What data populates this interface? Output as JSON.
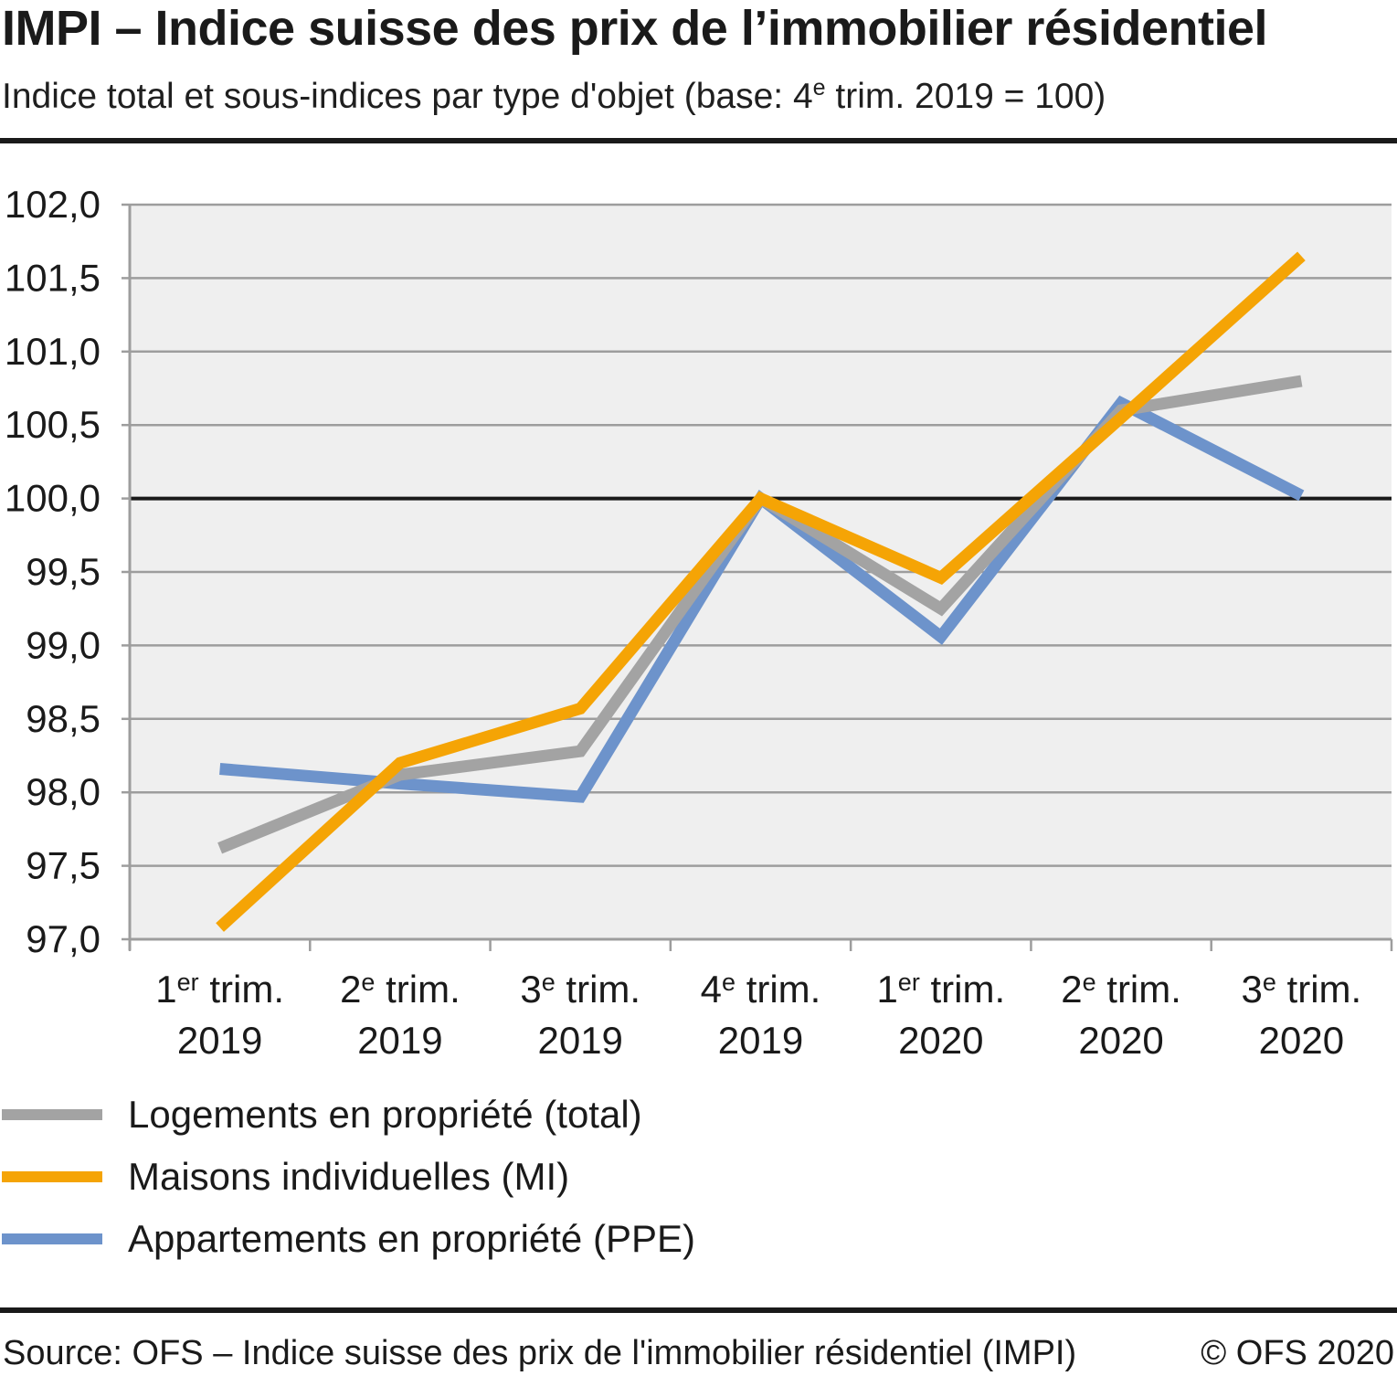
{
  "header": {
    "title": "IMPI – Indice suisse des prix de l’immobilier résidentiel",
    "subtitle": {
      "prefix": "Indice total et sous-indices par type d'objet (base: 4",
      "sup": "e",
      "suffix": " trim. 2019 = 100)"
    }
  },
  "chart_data": {
    "type": "line",
    "title": "IMPI – Indice suisse des prix de l’immobilier résidentiel",
    "subtitle": "Indice total et sous-indices par type d'objet (base: 4e trim. 2019 = 100)",
    "x_labels": [
      {
        "num": "1",
        "sup": "er",
        "rest": " trim.",
        "year": "2019"
      },
      {
        "num": "2",
        "sup": "e",
        "rest": " trim.",
        "year": "2019"
      },
      {
        "num": "3",
        "sup": "e",
        "rest": " trim.",
        "year": "2019"
      },
      {
        "num": "4",
        "sup": "e",
        "rest": " trim.",
        "year": "2019"
      },
      {
        "num": "1",
        "sup": "er",
        "rest": " trim.",
        "year": "2020"
      },
      {
        "num": "2",
        "sup": "e",
        "rest": " trim.",
        "year": "2020"
      },
      {
        "num": "3",
        "sup": "e",
        "rest": " trim.",
        "year": "2020"
      }
    ],
    "ylim": [
      97.0,
      102.0
    ],
    "y_step": 0.5,
    "y_tick_labels": [
      "97,0",
      "97,5",
      "98,0",
      "98,5",
      "99,0",
      "99,5",
      "100,0",
      "100,5",
      "101,0",
      "101,5",
      "102,0"
    ],
    "baseline_value": 100.0,
    "grid": true,
    "legend_position": "bottom-left",
    "series": [
      {
        "id": "total",
        "name": "Logements en propriété (total)",
        "color": "#a3a3a3",
        "values": [
          97.62,
          98.12,
          98.28,
          100.0,
          99.25,
          100.6,
          100.8
        ]
      },
      {
        "id": "mi",
        "name": "Maisons individuelles (MI)",
        "color": "#f5a405",
        "values": [
          97.08,
          98.2,
          98.57,
          100.0,
          99.46,
          100.55,
          101.65
        ]
      },
      {
        "id": "ppe",
        "name": "Appartements en propriété (PPE)",
        "color": "#6d93cb",
        "values": [
          98.16,
          98.06,
          97.97,
          100.0,
          99.06,
          100.65,
          100.02
        ]
      }
    ],
    "draw_order": [
      "ppe",
      "total",
      "mi"
    ],
    "style": {
      "plot_bg": "#efefef",
      "grid_color": "#9d9d9d",
      "axis_color": "#9d9d9d",
      "baseline_color": "#1a1a1a",
      "text_color": "#1a1a1a",
      "line_width": 13
    }
  },
  "footer": {
    "source": "Source: OFS – Indice suisse des prix de l'immobilier résidentiel (IMPI)",
    "copyright": "© OFS 2020"
  }
}
